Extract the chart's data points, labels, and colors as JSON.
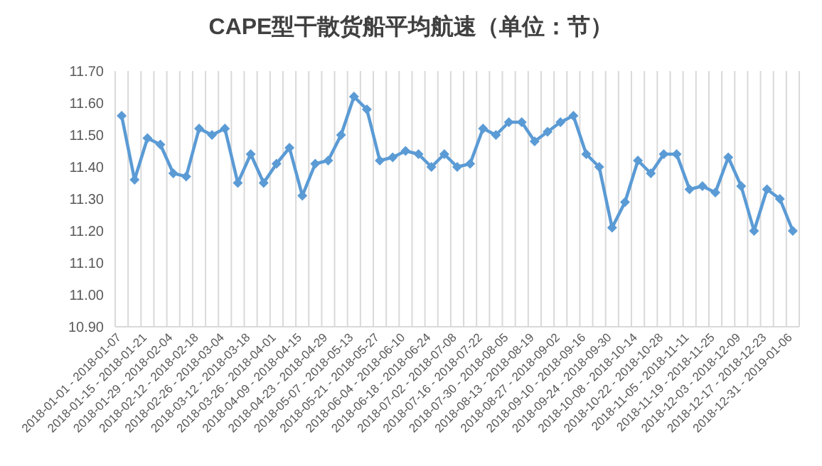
{
  "chart_data": {
    "type": "line",
    "title": "CAPE型干散货船平均航速（单位：节）",
    "categories": [
      "2018-01-01 - 2018-01-07",
      null,
      "2018-01-15 - 2018-01-21",
      null,
      "2018-01-29 - 2018-02-04",
      null,
      "2018-02-12 - 2018-02-18",
      null,
      "2018-02-26 - 2018-03-04",
      null,
      "2018-03-12 - 2018-03-18",
      null,
      "2018-03-26 - 2018-04-01",
      null,
      "2018-04-09 - 2018-04-15",
      null,
      "2018-04-23 - 2018-04-29",
      null,
      "2018-05-07 - 2018-05-13",
      null,
      "2018-05-21 - 2018-05-27",
      null,
      "2018-06-04 - 2018-06-10",
      null,
      "2018-06-18 - 2018-06-24",
      null,
      "2018-07-02 - 2018-07-08",
      null,
      "2018-07-16 - 2018-07-22",
      null,
      "2018-07-30 - 2018-08-05",
      null,
      "2018-08-13 - 2018-08-19",
      null,
      "2018-08-27 - 2018-09-02",
      null,
      "2018-09-10 - 2018-09-16",
      null,
      "2018-09-24 - 2018-09-30",
      null,
      "2018-10-08 - 2018-10-14",
      null,
      "2018-10-22 - 2018-10-28",
      null,
      "2018-11-05 - 2018-11-11",
      null,
      "2018-11-19 - 2018-11-25",
      null,
      "2018-12-03 - 2018-12-09",
      null,
      "2018-12-17 - 2018-12-23",
      null,
      "2018-12-31 - 2019-01-06"
    ],
    "series": [
      {
        "color": "#5b9bd5",
        "values": [
          11.56,
          11.36,
          11.49,
          11.47,
          11.38,
          11.37,
          11.52,
          11.5,
          11.52,
          11.35,
          11.44,
          11.35,
          11.41,
          11.46,
          11.31,
          11.41,
          11.42,
          11.5,
          11.62,
          11.58,
          11.42,
          11.43,
          11.45,
          11.44,
          11.4,
          11.44,
          11.4,
          11.41,
          11.52,
          11.5,
          11.54,
          11.54,
          11.48,
          11.51,
          11.54,
          11.56,
          11.44,
          11.4,
          11.21,
          11.29,
          11.42,
          11.38,
          11.44,
          11.44,
          11.33,
          11.34,
          11.32,
          11.43,
          11.34,
          11.2,
          11.33,
          11.3,
          11.2
        ]
      }
    ],
    "ylim": [
      10.9,
      11.7
    ],
    "yticks": [
      {
        "value": 10.9,
        "label": "10.90"
      },
      {
        "value": 11.0,
        "label": "11.00"
      },
      {
        "value": 11.1,
        "label": "11.10"
      },
      {
        "value": 11.2,
        "label": "11.20"
      },
      {
        "value": 11.3,
        "label": "11.30"
      },
      {
        "value": 11.4,
        "label": "11.40"
      },
      {
        "value": 11.5,
        "label": "11.50"
      },
      {
        "value": 11.6,
        "label": "11.60"
      },
      {
        "value": 11.7,
        "label": "11.70"
      }
    ],
    "grid": "x",
    "marker": "diamond"
  }
}
